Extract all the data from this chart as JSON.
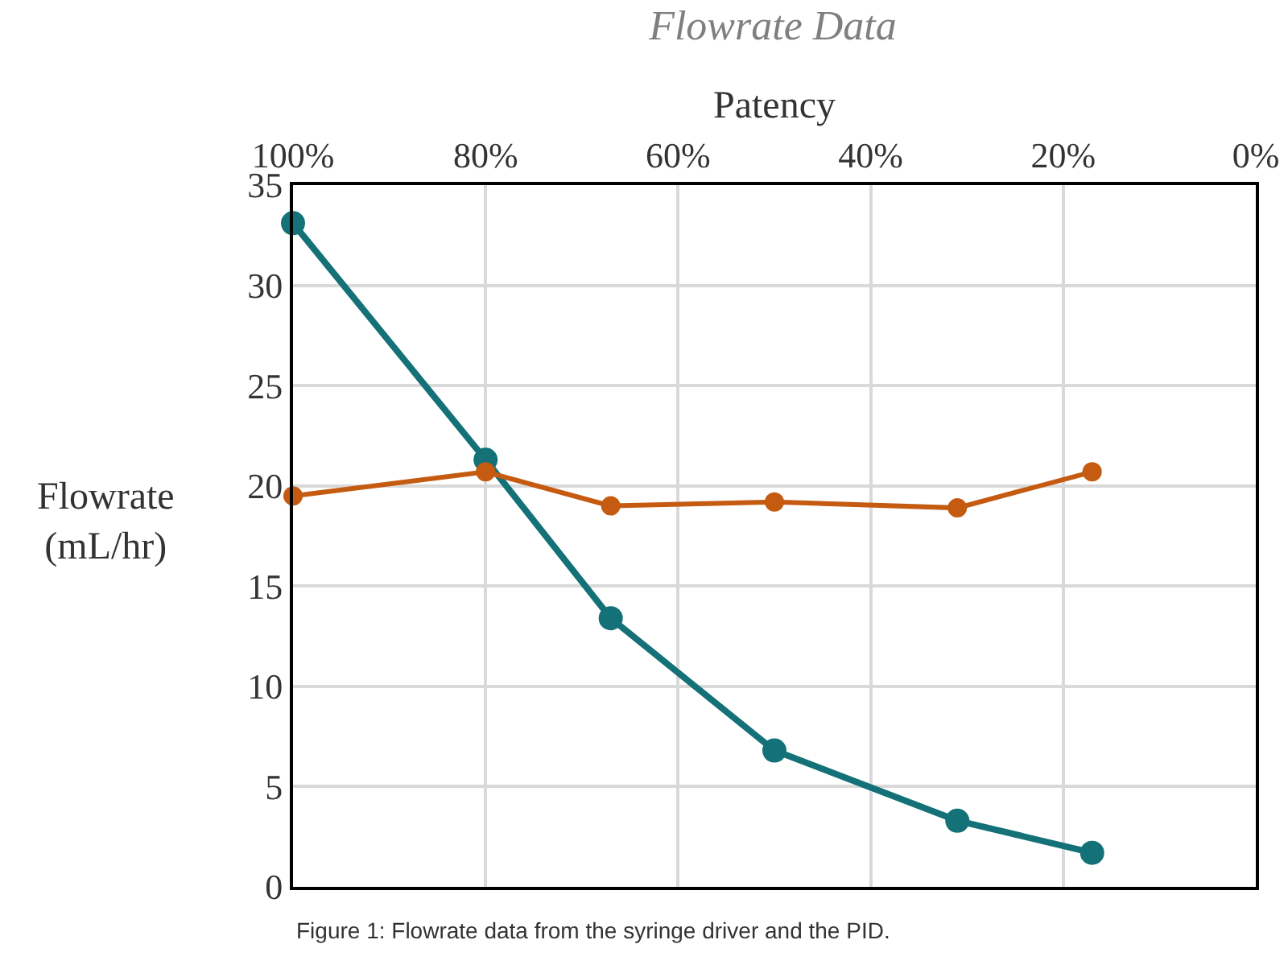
{
  "chart_data": {
    "type": "line",
    "title": "Flowrate Data",
    "xlabel": "Patency",
    "ylabel": "Flowrate (mL/hr)",
    "x": [
      100,
      80,
      67,
      50,
      31,
      17
    ],
    "series": [
      {
        "color": "#137177",
        "values": [
          33.1,
          21.3,
          13.4,
          6.8,
          3.3,
          1.7
        ]
      },
      {
        "color": "#c55a11",
        "values": [
          19.5,
          20.7,
          19.0,
          19.2,
          18.9,
          20.7
        ]
      }
    ],
    "xlim": [
      100,
      0
    ],
    "xticks": [
      {
        "value": 100,
        "label": "100%"
      },
      {
        "value": 80,
        "label": "80%"
      },
      {
        "value": 60,
        "label": "60%"
      },
      {
        "value": 40,
        "label": "40%"
      },
      {
        "value": 20,
        "label": "20%"
      },
      {
        "value": 0,
        "label": "0%"
      }
    ],
    "ylim": [
      0,
      35
    ],
    "yticks": [
      0,
      5,
      10,
      15,
      20,
      25,
      30,
      35
    ],
    "grid": true,
    "marker": "circle",
    "line_style": "solid",
    "annotations": [
      "Figure 1: Flowrate data from the syringe driver and the PID."
    ]
  }
}
